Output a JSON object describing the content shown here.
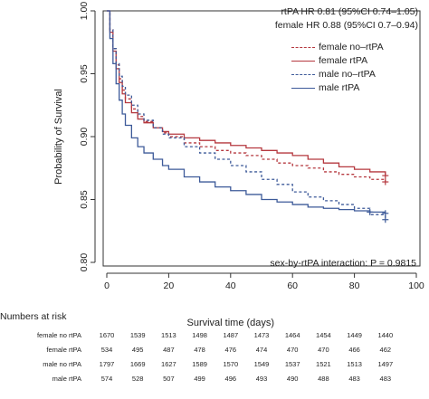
{
  "chart_data": {
    "type": "line",
    "ylabel": "Probability of Survival",
    "xlabel": "Survival time (days)",
    "xlim": [
      0,
      100
    ],
    "ylim": [
      0.8,
      1.0
    ],
    "x_ticks": [
      0,
      20,
      40,
      60,
      80,
      100
    ],
    "x_tick_labels": [
      "0",
      "20",
      "40",
      "60",
      "80",
      "100"
    ],
    "y_ticks": [
      0.8,
      0.85,
      0.9,
      0.95,
      1.0
    ],
    "y_tick_labels": [
      "0.80",
      "0.85",
      "0.90",
      "0.95",
      "1.00"
    ],
    "annotations": {
      "hr_rtpa": "rtPA HR 0.81 (95%CI 0.74–1.05)",
      "hr_female": "female HR 0.88 (95%CI 0.7–0.94)",
      "interaction": "sex-by-rtPA interaction: P = 0.9815"
    },
    "legend_position": "top-right",
    "series": [
      {
        "name": "female no–rtPA",
        "color": "#b5383f",
        "dash": "dashed",
        "x": [
          0,
          1,
          2,
          3,
          4,
          5,
          6,
          8,
          10,
          12,
          15,
          18,
          20,
          25,
          30,
          35,
          40,
          45,
          50,
          55,
          60,
          65,
          70,
          75,
          80,
          85,
          90
        ],
        "y": [
          1.0,
          0.985,
          0.97,
          0.957,
          0.946,
          0.937,
          0.93,
          0.922,
          0.916,
          0.912,
          0.907,
          0.903,
          0.9,
          0.895,
          0.892,
          0.889,
          0.887,
          0.885,
          0.882,
          0.879,
          0.877,
          0.875,
          0.872,
          0.87,
          0.868,
          0.866,
          0.864
        ],
        "censor": [
          [
            90,
            0.864
          ]
        ]
      },
      {
        "name": "female rtPA",
        "color": "#b5383f",
        "dash": "solid",
        "x": [
          0,
          1,
          2,
          3,
          4,
          5,
          6,
          8,
          10,
          12,
          15,
          18,
          20,
          25,
          30,
          35,
          40,
          45,
          50,
          55,
          60,
          65,
          70,
          75,
          80,
          85,
          90
        ],
        "y": [
          1.0,
          0.983,
          0.968,
          0.954,
          0.943,
          0.934,
          0.927,
          0.919,
          0.914,
          0.911,
          0.907,
          0.904,
          0.902,
          0.899,
          0.897,
          0.895,
          0.893,
          0.891,
          0.889,
          0.887,
          0.885,
          0.882,
          0.879,
          0.876,
          0.874,
          0.872,
          0.869
        ],
        "censor": [
          [
            90,
            0.869
          ]
        ]
      },
      {
        "name": "male no–rtPA",
        "color": "#3d5a99",
        "dash": "dashed",
        "x": [
          0,
          1,
          2,
          3,
          4,
          5,
          6,
          8,
          10,
          12,
          15,
          18,
          20,
          25,
          30,
          35,
          40,
          45,
          50,
          55,
          60,
          65,
          70,
          75,
          80,
          85,
          90
        ],
        "y": [
          1.0,
          0.985,
          0.97,
          0.958,
          0.948,
          0.94,
          0.933,
          0.925,
          0.918,
          0.913,
          0.907,
          0.902,
          0.899,
          0.892,
          0.887,
          0.882,
          0.877,
          0.872,
          0.866,
          0.862,
          0.856,
          0.852,
          0.849,
          0.846,
          0.843,
          0.838,
          0.834
        ],
        "censor": [
          [
            90,
            0.834
          ]
        ]
      },
      {
        "name": "male rtPA",
        "color": "#3d5a99",
        "dash": "solid",
        "x": [
          0,
          1,
          2,
          3,
          4,
          5,
          6,
          8,
          10,
          12,
          15,
          18,
          20,
          25,
          30,
          35,
          40,
          45,
          50,
          55,
          60,
          65,
          70,
          75,
          80,
          85,
          90
        ],
        "y": [
          1.0,
          0.978,
          0.958,
          0.942,
          0.929,
          0.918,
          0.909,
          0.899,
          0.892,
          0.887,
          0.882,
          0.877,
          0.874,
          0.868,
          0.864,
          0.86,
          0.857,
          0.854,
          0.85,
          0.848,
          0.846,
          0.844,
          0.843,
          0.842,
          0.841,
          0.84,
          0.839
        ],
        "censor": [
          [
            85,
            0.84
          ],
          [
            90,
            0.839
          ]
        ]
      }
    ],
    "risk_table": {
      "title": "Numbers at risk",
      "columns_x": [
        0,
        10,
        20,
        30,
        40,
        50,
        60,
        70,
        80,
        90
      ],
      "rows": [
        {
          "label": "female no rtPA",
          "values": [
            "1670",
            "1539",
            "1513",
            "1498",
            "1487",
            "1473",
            "1464",
            "1454",
            "1449",
            "1440"
          ]
        },
        {
          "label": "female rtPA",
          "values": [
            "534",
            "495",
            "487",
            "478",
            "476",
            "474",
            "470",
            "470",
            "466",
            "462"
          ]
        },
        {
          "label": "male no rtPA",
          "values": [
            "1797",
            "1669",
            "1627",
            "1589",
            "1570",
            "1549",
            "1537",
            "1521",
            "1513",
            "1497"
          ]
        },
        {
          "label": "male rtPA",
          "values": [
            "574",
            "528",
            "507",
            "499",
            "496",
            "493",
            "490",
            "488",
            "483",
            "483"
          ]
        }
      ]
    }
  }
}
